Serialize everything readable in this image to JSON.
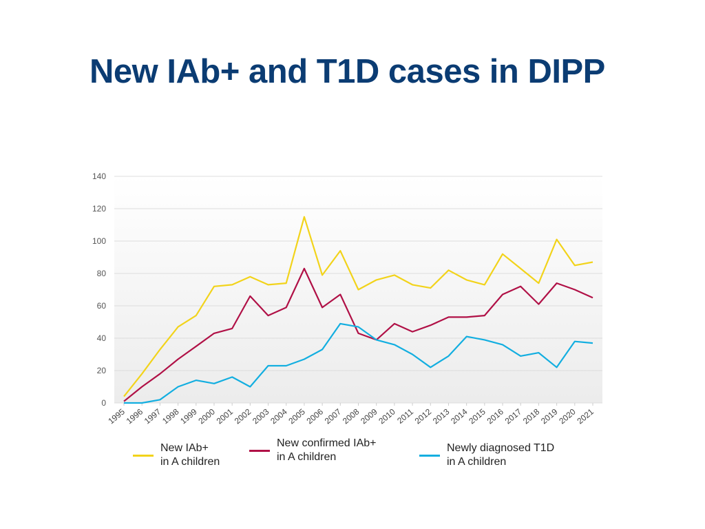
{
  "title": "New IAb+ and T1D cases in DIPP",
  "chart_data": {
    "type": "line",
    "title": "New IAb+ and T1D cases in DIPP",
    "xlabel": "",
    "ylabel": "",
    "ylim": [
      0,
      140
    ],
    "yticks": [
      0,
      20,
      40,
      60,
      80,
      100,
      120,
      140
    ],
    "grid": true,
    "legend_position": "bottom",
    "categories": [
      "1995",
      "1996",
      "1997",
      "1998",
      "1999",
      "2000",
      "2001",
      "2002",
      "2003",
      "2004",
      "2005",
      "2006",
      "2007",
      "2008",
      "2009",
      "2010",
      "2011",
      "2012",
      "2013",
      "2014",
      "2015",
      "2016",
      "2017",
      "2018",
      "2019",
      "2020",
      "2021"
    ],
    "series": [
      {
        "name": "New IAb+ in A children",
        "label_lines": [
          "New IAb+",
          "in A children"
        ],
        "color": "#f2d31a",
        "values": [
          4,
          18,
          33,
          47,
          54,
          72,
          73,
          78,
          73,
          74,
          115,
          79,
          94,
          70,
          76,
          79,
          73,
          71,
          82,
          76,
          73,
          92,
          83,
          74,
          101,
          85,
          87
        ]
      },
      {
        "name": "New confirmed IAb+ in A children",
        "label_lines": [
          "New confirmed IAb+",
          "in A children"
        ],
        "color": "#b01046",
        "values": [
          1,
          10,
          18,
          27,
          35,
          43,
          46,
          66,
          54,
          59,
          83,
          59,
          67,
          43,
          39,
          49,
          44,
          48,
          53,
          53,
          54,
          67,
          72,
          61,
          74,
          70,
          65
        ]
      },
      {
        "name": "Newly diagnosed T1D in A children",
        "label_lines": [
          "Newly diagnosed T1D",
          "in A children"
        ],
        "color": "#12aee0",
        "values": [
          0,
          0,
          2,
          10,
          14,
          12,
          16,
          10,
          23,
          23,
          27,
          33,
          49,
          47,
          39,
          36,
          30,
          22,
          29,
          41,
          39,
          36,
          29,
          31,
          22,
          38,
          37
        ]
      }
    ]
  }
}
